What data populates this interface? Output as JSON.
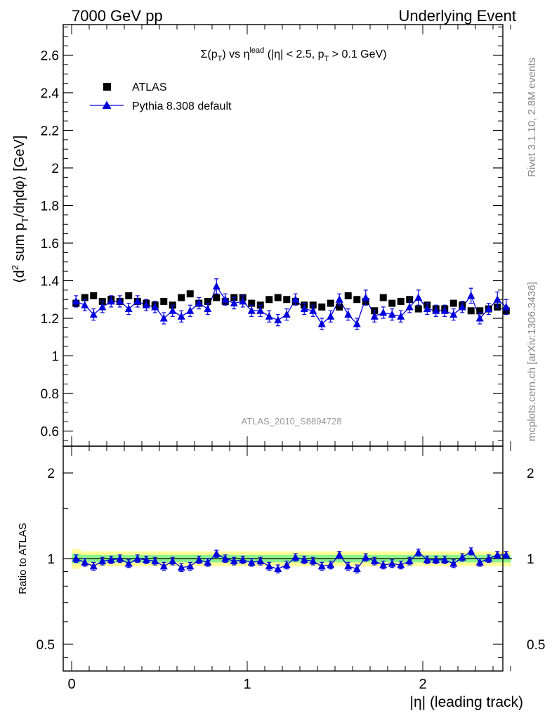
{
  "header": {
    "left": "7000 GeV pp",
    "right": "Underlying Event"
  },
  "side_labels": {
    "rivet": "Rivet 3.1.10,  2.8M events",
    "mcplots": "mcplots.cern.ch [arXiv:1306.3436]"
  },
  "colors": {
    "data": "#000000",
    "mc": "#0000dd",
    "band_inner": "#8df58d",
    "band_outer": "#ffff99",
    "watermark": "#999999",
    "side_text": "#888888"
  },
  "chart_data": [
    {
      "type": "scatter",
      "title": "Σ(pT) vs η^lead (|η| < 2.5, pT > 0.1 GeV)",
      "ylabel": "⟨d² sum pT/dηdφ⟩ [GeV]",
      "watermark": "ATLAS_2010_S8894728",
      "xlim": [
        -0.05,
        2.55
      ],
      "ylim": [
        0.54,
        2.75
      ],
      "yticks": [
        0.6,
        0.8,
        1,
        1.2,
        1.4,
        1.6,
        1.8,
        2,
        2.2,
        2.4,
        2.6
      ],
      "ytick_labels": [
        "0.6",
        "0.8",
        "1",
        "1.2",
        "1.4",
        "1.6",
        "1.8",
        "2",
        "2.2",
        "2.4",
        "2.6"
      ],
      "legend": {
        "placement": "top-left",
        "entries": [
          {
            "label": "ATLAS",
            "marker": "square"
          },
          {
            "label": "Pythia 8.308 default",
            "marker": "triangle"
          }
        ]
      },
      "x": [
        0.025,
        0.075,
        0.125,
        0.175,
        0.225,
        0.275,
        0.325,
        0.375,
        0.425,
        0.475,
        0.525,
        0.575,
        0.625,
        0.675,
        0.725,
        0.775,
        0.825,
        0.875,
        0.925,
        0.975,
        1.025,
        1.075,
        1.125,
        1.175,
        1.225,
        1.275,
        1.325,
        1.375,
        1.425,
        1.475,
        1.525,
        1.575,
        1.625,
        1.675,
        1.725,
        1.775,
        1.825,
        1.875,
        1.925,
        1.975,
        2.025,
        2.075,
        2.125,
        2.175,
        2.225,
        2.275,
        2.325,
        2.375,
        2.425,
        2.475
      ],
      "series": [
        {
          "name": "ATLAS",
          "values": [
            1.28,
            1.31,
            1.32,
            1.29,
            1.3,
            1.29,
            1.32,
            1.29,
            1.28,
            1.27,
            1.29,
            1.27,
            1.31,
            1.33,
            1.28,
            1.29,
            1.31,
            1.29,
            1.31,
            1.31,
            1.28,
            1.27,
            1.3,
            1.31,
            1.3,
            1.29,
            1.27,
            1.27,
            1.26,
            1.28,
            1.26,
            1.32,
            1.3,
            1.29,
            1.24,
            1.31,
            1.28,
            1.29,
            1.3,
            1.25,
            1.27,
            1.25,
            1.25,
            1.28,
            1.27,
            1.24,
            1.24,
            1.25,
            1.26,
            1.24
          ]
        },
        {
          "name": "Pythia 8.308 default",
          "values": [
            1.29,
            1.27,
            1.22,
            1.26,
            1.29,
            1.29,
            1.25,
            1.29,
            1.27,
            1.26,
            1.2,
            1.24,
            1.21,
            1.24,
            1.28,
            1.25,
            1.37,
            1.3,
            1.28,
            1.29,
            1.24,
            1.24,
            1.21,
            1.19,
            1.22,
            1.3,
            1.25,
            1.24,
            1.17,
            1.21,
            1.3,
            1.22,
            1.17,
            1.31,
            1.21,
            1.23,
            1.22,
            1.21,
            1.26,
            1.31,
            1.25,
            1.24,
            1.24,
            1.22,
            1.26,
            1.32,
            1.2,
            1.25,
            1.3,
            1.26
          ],
          "errors": [
            0.03,
            0.03,
            0.03,
            0.03,
            0.03,
            0.03,
            0.03,
            0.03,
            0.03,
            0.03,
            0.03,
            0.03,
            0.03,
            0.03,
            0.03,
            0.03,
            0.04,
            0.03,
            0.03,
            0.03,
            0.03,
            0.03,
            0.03,
            0.03,
            0.03,
            0.03,
            0.03,
            0.03,
            0.03,
            0.03,
            0.03,
            0.03,
            0.03,
            0.04,
            0.03,
            0.03,
            0.03,
            0.03,
            0.03,
            0.04,
            0.03,
            0.03,
            0.03,
            0.03,
            0.03,
            0.04,
            0.03,
            0.03,
            0.04,
            0.04
          ]
        }
      ]
    },
    {
      "type": "scatter",
      "ylabel": "Ratio to ATLAS",
      "xlabel": "|η| (leading track)",
      "xlim": [
        -0.05,
        2.55
      ],
      "ylim": [
        0.42,
        2.4
      ],
      "log_y": true,
      "yticks": [
        0.5,
        1,
        2
      ],
      "ytick_labels": [
        "0.5",
        "1",
        "2"
      ],
      "xticks": [
        0,
        1,
        2
      ],
      "xtick_labels": [
        "0",
        "1",
        "2"
      ],
      "x": [
        0.025,
        0.075,
        0.125,
        0.175,
        0.225,
        0.275,
        0.325,
        0.375,
        0.425,
        0.475,
        0.525,
        0.575,
        0.625,
        0.675,
        0.725,
        0.775,
        0.825,
        0.875,
        0.925,
        0.975,
        1.025,
        1.075,
        1.125,
        1.175,
        1.225,
        1.275,
        1.325,
        1.375,
        1.425,
        1.475,
        1.525,
        1.575,
        1.625,
        1.675,
        1.725,
        1.775,
        1.825,
        1.875,
        1.925,
        1.975,
        2.025,
        2.075,
        2.125,
        2.175,
        2.225,
        2.275,
        2.325,
        2.375,
        2.425,
        2.475
      ],
      "band_inner": [
        0.04,
        0.03,
        0.03,
        0.03,
        0.03,
        0.03,
        0.03,
        0.03,
        0.03,
        0.03,
        0.03,
        0.03,
        0.03,
        0.03,
        0.03,
        0.03,
        0.03,
        0.03,
        0.03,
        0.03,
        0.03,
        0.03,
        0.03,
        0.03,
        0.03,
        0.03,
        0.03,
        0.03,
        0.03,
        0.03,
        0.03,
        0.03,
        0.03,
        0.03,
        0.03,
        0.03,
        0.03,
        0.03,
        0.03,
        0.03,
        0.03,
        0.03,
        0.03,
        0.03,
        0.03,
        0.03,
        0.03,
        0.03,
        0.03,
        0.03
      ],
      "band_outer": [
        0.08,
        0.06,
        0.06,
        0.06,
        0.06,
        0.06,
        0.06,
        0.06,
        0.06,
        0.06,
        0.06,
        0.06,
        0.06,
        0.06,
        0.06,
        0.06,
        0.06,
        0.06,
        0.06,
        0.06,
        0.06,
        0.06,
        0.06,
        0.06,
        0.06,
        0.06,
        0.06,
        0.06,
        0.06,
        0.06,
        0.06,
        0.06,
        0.06,
        0.06,
        0.06,
        0.06,
        0.06,
        0.06,
        0.06,
        0.06,
        0.06,
        0.06,
        0.06,
        0.06,
        0.06,
        0.06,
        0.06,
        0.06,
        0.06,
        0.06
      ],
      "series": [
        {
          "name": "Pythia 8.308 default",
          "values": [
            1.0,
            0.97,
            0.94,
            0.98,
            0.99,
            1.0,
            0.96,
            1.0,
            0.99,
            0.98,
            0.94,
            0.98,
            0.93,
            0.94,
            0.99,
            0.97,
            1.04,
            1.0,
            0.98,
            0.99,
            0.97,
            0.98,
            0.94,
            0.92,
            0.95,
            1.01,
            0.99,
            0.98,
            0.94,
            0.95,
            1.03,
            0.94,
            0.92,
            1.01,
            0.98,
            0.95,
            0.96,
            0.95,
            0.98,
            1.05,
            0.99,
            0.99,
            0.99,
            0.96,
            1.01,
            1.06,
            0.97,
            1.0,
            1.03,
            1.03
          ],
          "errors": [
            0.03,
            0.03,
            0.03,
            0.03,
            0.03,
            0.03,
            0.03,
            0.03,
            0.03,
            0.03,
            0.03,
            0.03,
            0.03,
            0.03,
            0.03,
            0.03,
            0.03,
            0.03,
            0.03,
            0.03,
            0.03,
            0.03,
            0.03,
            0.03,
            0.03,
            0.03,
            0.03,
            0.03,
            0.03,
            0.03,
            0.03,
            0.03,
            0.03,
            0.03,
            0.03,
            0.03,
            0.03,
            0.03,
            0.03,
            0.03,
            0.03,
            0.03,
            0.03,
            0.03,
            0.03,
            0.03,
            0.03,
            0.03,
            0.03,
            0.03
          ]
        }
      ]
    }
  ]
}
